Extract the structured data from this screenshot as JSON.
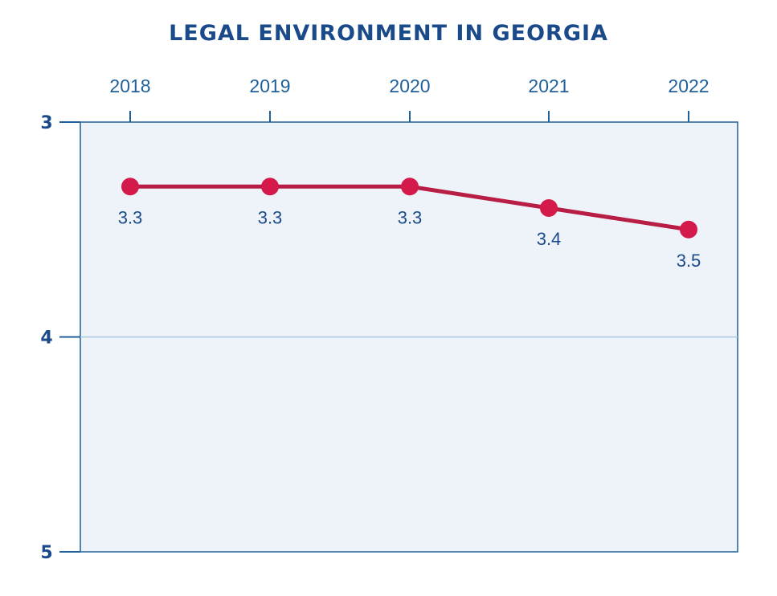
{
  "chart_data": {
    "type": "line",
    "title": "LEGAL ENVIRONMENT IN GEORGIA",
    "xlabel": "",
    "ylabel": "",
    "x_axis_position": "top",
    "y_inverted": true,
    "categories": [
      "2018",
      "2019",
      "2020",
      "2021",
      "2022"
    ],
    "series": [
      {
        "name": "Legal Environment",
        "values": [
          3.3,
          3.3,
          3.3,
          3.4,
          3.5
        ],
        "labels": [
          "3.3",
          "3.3",
          "3.3",
          "3.4",
          "3.5"
        ]
      }
    ],
    "ylim": [
      3,
      5
    ],
    "yticks": [
      3,
      4,
      5
    ],
    "ytick_labels": [
      "3",
      "4",
      "5"
    ],
    "gridlines": [
      4
    ],
    "colors": {
      "title": "#1a4a8a",
      "axis": "#1f5f9a",
      "plot_background": "#eef3fa",
      "gridline": "#a9c6de",
      "series_line": "#b81d45",
      "marker": "#d41a4a",
      "data_label": "#1a4a8a"
    }
  }
}
